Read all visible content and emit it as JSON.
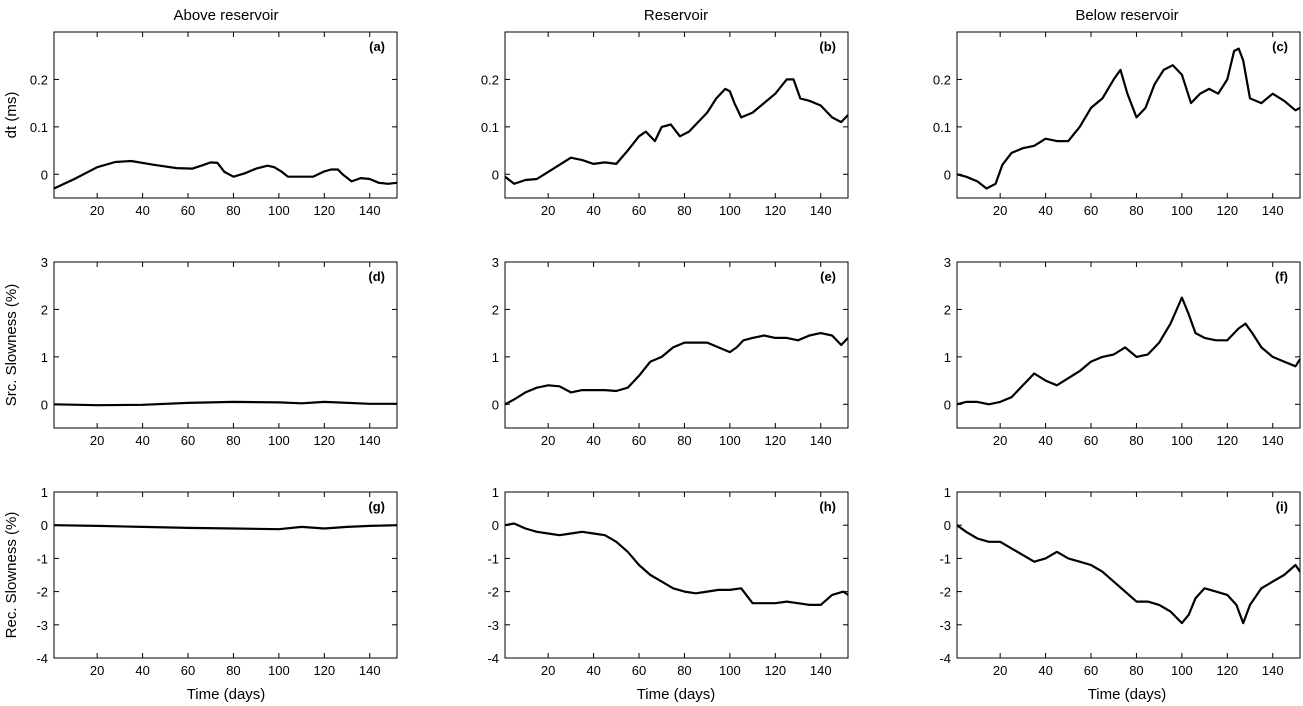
{
  "figure": {
    "column_titles": [
      "Above reservoir",
      "Reservoir",
      "Below reservoir"
    ],
    "row_ylabels": [
      "dt (ms)",
      "Src. Slowness (%)",
      "Rec. Slowness (%)"
    ],
    "xlabel": "Time (days)"
  },
  "chart_data": [
    {
      "type": "line",
      "panel": "(a)",
      "row": 0,
      "col": 0,
      "title": "Above reservoir",
      "xlabel": "",
      "ylabel": "dt (ms)",
      "xlim": [
        1,
        152
      ],
      "ylim": [
        -0.05,
        0.3
      ],
      "xticks": [
        20,
        40,
        60,
        80,
        100,
        120,
        140
      ],
      "yticks": [
        0,
        0.1,
        0.2
      ],
      "ytick_labels": [
        "0",
        "0.1",
        "0.2"
      ],
      "series": [
        {
          "x": [
            1,
            10,
            20,
            28,
            35,
            45,
            55,
            62,
            67,
            70,
            73,
            76,
            80,
            85,
            90,
            95,
            98,
            101,
            104,
            110,
            115,
            120,
            123,
            126,
            128,
            132,
            136,
            140,
            144,
            148,
            152
          ],
          "y": [
            -0.03,
            -0.01,
            0.015,
            0.026,
            0.028,
            0.02,
            0.013,
            0.012,
            0.02,
            0.025,
            0.024,
            0.005,
            -0.005,
            0.002,
            0.012,
            0.018,
            0.015,
            0.006,
            -0.005,
            -0.005,
            -0.005,
            0.006,
            0.01,
            0.01,
            0.0,
            -0.015,
            -0.008,
            -0.01,
            -0.018,
            -0.02,
            -0.018
          ]
        }
      ]
    },
    {
      "type": "line",
      "panel": "(b)",
      "row": 0,
      "col": 1,
      "title": "Reservoir",
      "xlabel": "",
      "ylabel": "",
      "xlim": [
        1,
        152
      ],
      "ylim": [
        -0.05,
        0.3
      ],
      "xticks": [
        20,
        40,
        60,
        80,
        100,
        120,
        140
      ],
      "yticks": [
        0,
        0.1,
        0.2
      ],
      "ytick_labels": [
        "0",
        "0.1",
        "0.2"
      ],
      "series": [
        {
          "x": [
            1,
            5,
            10,
            15,
            20,
            25,
            30,
            35,
            40,
            45,
            50,
            55,
            60,
            63,
            67,
            70,
            74,
            78,
            82,
            86,
            90,
            94,
            98,
            100,
            102,
            105,
            110,
            115,
            120,
            125,
            128,
            131,
            135,
            140,
            145,
            149,
            152
          ],
          "y": [
            -0.005,
            -0.02,
            -0.012,
            -0.01,
            0.005,
            0.02,
            0.035,
            0.03,
            0.022,
            0.025,
            0.022,
            0.05,
            0.08,
            0.09,
            0.07,
            0.1,
            0.105,
            0.08,
            0.09,
            0.11,
            0.13,
            0.16,
            0.18,
            0.175,
            0.15,
            0.12,
            0.13,
            0.15,
            0.17,
            0.2,
            0.2,
            0.16,
            0.155,
            0.145,
            0.12,
            0.11,
            0.125
          ]
        }
      ]
    },
    {
      "type": "line",
      "panel": "(c)",
      "row": 0,
      "col": 2,
      "title": "Below reservoir",
      "xlabel": "",
      "ylabel": "",
      "xlim": [
        1,
        152
      ],
      "ylim": [
        -0.05,
        0.3
      ],
      "xticks": [
        20,
        40,
        60,
        80,
        100,
        120,
        140
      ],
      "yticks": [
        0,
        0.1,
        0.2
      ],
      "ytick_labels": [
        "0",
        "0.1",
        "0.2"
      ],
      "series": [
        {
          "x": [
            1,
            5,
            10,
            14,
            18,
            21,
            25,
            30,
            35,
            40,
            45,
            50,
            55,
            60,
            65,
            70,
            73,
            76,
            80,
            84,
            88,
            92,
            96,
            100,
            104,
            108,
            112,
            116,
            120,
            123,
            125,
            127,
            130,
            135,
            140,
            145,
            150,
            152
          ],
          "y": [
            0.0,
            -0.005,
            -0.015,
            -0.03,
            -0.02,
            0.02,
            0.045,
            0.055,
            0.06,
            0.075,
            0.07,
            0.07,
            0.1,
            0.14,
            0.16,
            0.2,
            0.22,
            0.17,
            0.12,
            0.14,
            0.19,
            0.22,
            0.23,
            0.21,
            0.15,
            0.17,
            0.18,
            0.17,
            0.2,
            0.26,
            0.265,
            0.24,
            0.16,
            0.15,
            0.17,
            0.155,
            0.135,
            0.14
          ]
        }
      ]
    },
    {
      "type": "line",
      "panel": "(d)",
      "row": 1,
      "col": 0,
      "title": "",
      "xlabel": "",
      "ylabel": "Src. Slowness (%)",
      "xlim": [
        1,
        152
      ],
      "ylim": [
        -0.5,
        3
      ],
      "xticks": [
        20,
        40,
        60,
        80,
        100,
        120,
        140
      ],
      "yticks": [
        0,
        1,
        2,
        3
      ],
      "ytick_labels": [
        "0",
        "1",
        "2",
        "3"
      ],
      "series": [
        {
          "x": [
            1,
            20,
            40,
            60,
            80,
            100,
            110,
            120,
            140,
            152
          ],
          "y": [
            0.0,
            -0.02,
            -0.01,
            0.03,
            0.05,
            0.04,
            0.02,
            0.05,
            0.01,
            0.01
          ]
        }
      ]
    },
    {
      "type": "line",
      "panel": "(e)",
      "row": 1,
      "col": 1,
      "title": "",
      "xlabel": "",
      "ylabel": "",
      "xlim": [
        1,
        152
      ],
      "ylim": [
        -0.5,
        3
      ],
      "xticks": [
        20,
        40,
        60,
        80,
        100,
        120,
        140
      ],
      "yticks": [
        0,
        1,
        2,
        3
      ],
      "ytick_labels": [
        "0",
        "1",
        "2",
        "3"
      ],
      "series": [
        {
          "x": [
            1,
            5,
            10,
            15,
            20,
            25,
            30,
            35,
            40,
            45,
            50,
            55,
            60,
            65,
            70,
            75,
            80,
            85,
            90,
            95,
            100,
            103,
            106,
            110,
            115,
            120,
            125,
            130,
            135,
            140,
            145,
            149,
            152
          ],
          "y": [
            0.0,
            0.1,
            0.25,
            0.35,
            0.4,
            0.38,
            0.25,
            0.3,
            0.3,
            0.3,
            0.28,
            0.35,
            0.6,
            0.9,
            1.0,
            1.2,
            1.3,
            1.3,
            1.3,
            1.2,
            1.1,
            1.2,
            1.35,
            1.4,
            1.45,
            1.4,
            1.4,
            1.35,
            1.45,
            1.5,
            1.45,
            1.25,
            1.4
          ]
        }
      ]
    },
    {
      "type": "line",
      "panel": "(f)",
      "row": 1,
      "col": 2,
      "title": "",
      "xlabel": "",
      "ylabel": "",
      "xlim": [
        1,
        152
      ],
      "ylim": [
        -0.5,
        3
      ],
      "xticks": [
        20,
        40,
        60,
        80,
        100,
        120,
        140
      ],
      "yticks": [
        0,
        1,
        2,
        3
      ],
      "ytick_labels": [
        "0",
        "1",
        "2",
        "3"
      ],
      "series": [
        {
          "x": [
            1,
            5,
            10,
            15,
            20,
            25,
            30,
            35,
            40,
            45,
            50,
            55,
            60,
            65,
            70,
            75,
            80,
            85,
            90,
            95,
            100,
            103,
            106,
            110,
            115,
            120,
            125,
            128,
            131,
            135,
            140,
            145,
            150,
            152
          ],
          "y": [
            0.0,
            0.05,
            0.05,
            0.0,
            0.05,
            0.15,
            0.4,
            0.65,
            0.5,
            0.4,
            0.55,
            0.7,
            0.9,
            1.0,
            1.05,
            1.2,
            1.0,
            1.05,
            1.3,
            1.7,
            2.25,
            1.9,
            1.5,
            1.4,
            1.35,
            1.35,
            1.6,
            1.7,
            1.5,
            1.2,
            1.0,
            0.9,
            0.8,
            0.95
          ]
        }
      ]
    },
    {
      "type": "line",
      "panel": "(g)",
      "row": 2,
      "col": 0,
      "title": "",
      "xlabel": "Time (days)",
      "ylabel": "Rec. Slowness (%)",
      "xlim": [
        1,
        152
      ],
      "ylim": [
        -4,
        1
      ],
      "xticks": [
        20,
        40,
        60,
        80,
        100,
        120,
        140
      ],
      "yticks": [
        -4,
        -3,
        -2,
        -1,
        0,
        1
      ],
      "ytick_labels": [
        "-4",
        "-3",
        "-2",
        "-1",
        "0",
        "1"
      ],
      "series": [
        {
          "x": [
            1,
            20,
            40,
            60,
            80,
            100,
            110,
            120,
            130,
            140,
            152
          ],
          "y": [
            0.0,
            -0.02,
            -0.05,
            -0.08,
            -0.1,
            -0.12,
            -0.05,
            -0.1,
            -0.05,
            -0.02,
            0.0
          ]
        }
      ]
    },
    {
      "type": "line",
      "panel": "(h)",
      "row": 2,
      "col": 1,
      "title": "",
      "xlabel": "Time (days)",
      "ylabel": "",
      "xlim": [
        1,
        152
      ],
      "ylim": [
        -4,
        1
      ],
      "xticks": [
        20,
        40,
        60,
        80,
        100,
        120,
        140
      ],
      "yticks": [
        -4,
        -3,
        -2,
        -1,
        0,
        1
      ],
      "ytick_labels": [
        "-4",
        "-3",
        "-2",
        "-1",
        "0",
        "1"
      ],
      "series": [
        {
          "x": [
            1,
            5,
            10,
            15,
            20,
            25,
            30,
            35,
            40,
            45,
            50,
            55,
            60,
            65,
            70,
            75,
            80,
            85,
            90,
            95,
            100,
            105,
            110,
            115,
            120,
            125,
            130,
            135,
            140,
            145,
            150,
            152
          ],
          "y": [
            0.0,
            0.05,
            -0.1,
            -0.2,
            -0.25,
            -0.3,
            -0.25,
            -0.2,
            -0.25,
            -0.3,
            -0.5,
            -0.8,
            -1.2,
            -1.5,
            -1.7,
            -1.9,
            -2.0,
            -2.05,
            -2.0,
            -1.95,
            -1.95,
            -1.9,
            -2.35,
            -2.35,
            -2.35,
            -2.3,
            -2.35,
            -2.4,
            -2.4,
            -2.1,
            -2.0,
            -2.1
          ]
        }
      ]
    },
    {
      "type": "line",
      "panel": "(i)",
      "row": 2,
      "col": 2,
      "title": "",
      "xlabel": "Time (days)",
      "ylabel": "",
      "xlim": [
        1,
        152
      ],
      "ylim": [
        -4,
        1
      ],
      "xticks": [
        20,
        40,
        60,
        80,
        100,
        120,
        140
      ],
      "yticks": [
        -4,
        -3,
        -2,
        -1,
        0,
        1
      ],
      "ytick_labels": [
        "-4",
        "-3",
        "-2",
        "-1",
        "0",
        "1"
      ],
      "series": [
        {
          "x": [
            1,
            5,
            10,
            15,
            20,
            25,
            30,
            35,
            40,
            45,
            50,
            55,
            60,
            65,
            70,
            75,
            80,
            85,
            90,
            95,
            100,
            103,
            106,
            110,
            115,
            120,
            124,
            127,
            130,
            135,
            140,
            145,
            150,
            152
          ],
          "y": [
            0.0,
            -0.2,
            -0.4,
            -0.5,
            -0.5,
            -0.7,
            -0.9,
            -1.1,
            -1.0,
            -0.8,
            -1.0,
            -1.1,
            -1.2,
            -1.4,
            -1.7,
            -2.0,
            -2.3,
            -2.3,
            -2.4,
            -2.6,
            -2.95,
            -2.7,
            -2.2,
            -1.9,
            -2.0,
            -2.1,
            -2.4,
            -2.95,
            -2.4,
            -1.9,
            -1.7,
            -1.5,
            -1.2,
            -1.4
          ]
        }
      ]
    }
  ]
}
